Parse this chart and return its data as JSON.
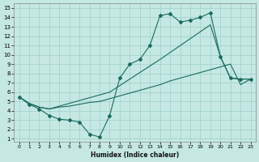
{
  "xlabel": "Humidex (Indice chaleur)",
  "bg_color": "#c5e8e3",
  "grid_color": "#9ecfca",
  "line_color": "#1a6b5e",
  "xlim_min": -0.5,
  "xlim_max": 23.5,
  "ylim_min": 0.7,
  "ylim_max": 15.5,
  "xticks": [
    0,
    1,
    2,
    3,
    4,
    5,
    6,
    7,
    8,
    9,
    10,
    11,
    12,
    13,
    14,
    15,
    16,
    17,
    18,
    19,
    20,
    21,
    22,
    23
  ],
  "yticks": [
    1,
    2,
    3,
    4,
    5,
    6,
    7,
    8,
    9,
    10,
    11,
    12,
    13,
    14,
    15
  ],
  "line1_x": [
    0,
    1,
    2,
    3,
    4,
    5,
    6,
    7,
    8,
    9,
    10,
    11,
    12,
    13,
    14,
    15,
    16,
    17,
    18,
    19,
    20,
    21,
    22,
    23
  ],
  "line1_y": [
    5.5,
    4.7,
    4.2,
    3.5,
    3.1,
    3.0,
    2.8,
    1.5,
    1.2,
    3.5,
    7.5,
    9.0,
    9.5,
    11.0,
    14.2,
    14.4,
    13.5,
    13.7,
    14.0,
    14.5,
    9.8,
    7.5,
    7.4,
    7.4
  ],
  "line2_x": [
    0,
    1,
    2,
    3,
    4,
    5,
    6,
    7,
    8,
    9,
    10,
    11,
    12,
    13,
    14,
    15,
    16,
    17,
    18,
    19,
    20,
    21,
    22,
    23
  ],
  "line2_y": [
    5.5,
    4.8,
    4.4,
    4.2,
    4.4,
    4.5,
    4.7,
    4.9,
    5.0,
    5.3,
    5.6,
    5.9,
    6.2,
    6.5,
    6.8,
    7.2,
    7.5,
    7.8,
    8.1,
    8.4,
    8.7,
    9.0,
    6.8,
    7.4
  ],
  "line3_x": [
    0,
    1,
    2,
    3,
    9,
    14,
    19,
    20,
    21,
    22,
    23
  ],
  "line3_y": [
    5.5,
    4.8,
    4.4,
    4.2,
    6.0,
    9.5,
    13.2,
    9.8,
    7.5,
    7.4,
    7.4
  ]
}
